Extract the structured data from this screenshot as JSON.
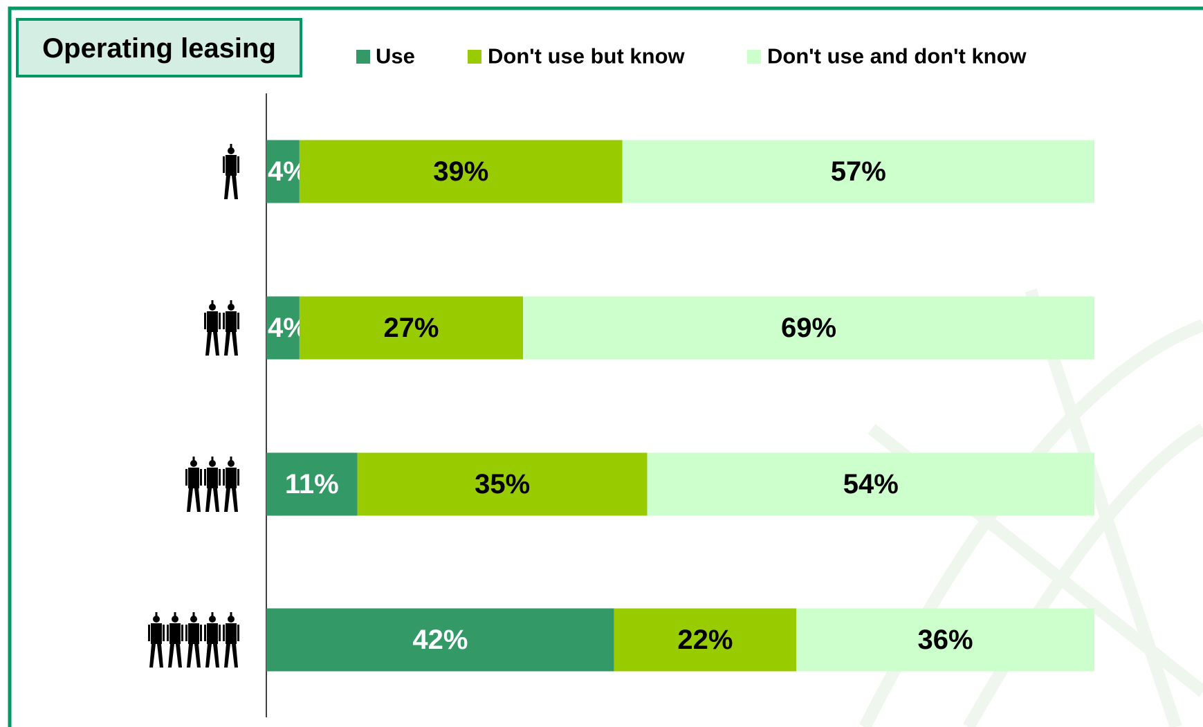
{
  "chart_data": {
    "type": "stacked-bar-horizontal",
    "title": "Operating leasing",
    "categories": [
      null,
      null,
      null,
      null
    ],
    "xlim": [
      0,
      100
    ],
    "series": [
      {
        "name": "Use",
        "color": "#339966",
        "values": [
          4,
          4,
          11,
          42
        ],
        "value_labels": [
          "4%",
          "4%",
          "11%",
          "42%"
        ]
      },
      {
        "name": "Don't use but know",
        "color": "#99cc00",
        "values": [
          39,
          27,
          35,
          22
        ],
        "value_labels": [
          "39%",
          "27%",
          "35%",
          "22%"
        ]
      },
      {
        "name": "Don't use and don't know",
        "color": "#ccffcc",
        "values": [
          57,
          69,
          54,
          36
        ],
        "value_labels": [
          "57%",
          "69%",
          "54%",
          "36%"
        ]
      }
    ]
  }
}
